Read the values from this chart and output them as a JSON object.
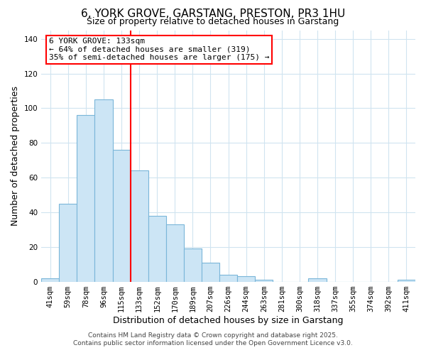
{
  "title": "6, YORK GROVE, GARSTANG, PRESTON, PR3 1HU",
  "subtitle": "Size of property relative to detached houses in Garstang",
  "xlabel": "Distribution of detached houses by size in Garstang",
  "ylabel": "Number of detached properties",
  "bar_color": "#cce5f5",
  "bar_edge_color": "#7ab6d9",
  "categories": [
    "41sqm",
    "59sqm",
    "78sqm",
    "96sqm",
    "115sqm",
    "133sqm",
    "152sqm",
    "170sqm",
    "189sqm",
    "207sqm",
    "226sqm",
    "244sqm",
    "263sqm",
    "281sqm",
    "300sqm",
    "318sqm",
    "337sqm",
    "355sqm",
    "374sqm",
    "392sqm",
    "411sqm"
  ],
  "values": [
    2,
    45,
    96,
    105,
    76,
    64,
    38,
    33,
    19,
    11,
    4,
    3,
    1,
    0,
    0,
    2,
    0,
    0,
    0,
    0,
    1
  ],
  "redline_index": 4.5,
  "ylim": [
    0,
    145
  ],
  "yticks": [
    0,
    20,
    40,
    60,
    80,
    100,
    120,
    140
  ],
  "annotation_title": "6 YORK GROVE: 133sqm",
  "annotation_line1": "← 64% of detached houses are smaller (319)",
  "annotation_line2": "35% of semi-detached houses are larger (175) →",
  "footer_line1": "Contains HM Land Registry data © Crown copyright and database right 2025.",
  "footer_line2": "Contains public sector information licensed under the Open Government Licence v3.0.",
  "background_color": "#ffffff",
  "grid_color": "#d0e4f0",
  "title_fontsize": 11,
  "subtitle_fontsize": 9,
  "axis_label_fontsize": 9,
  "tick_fontsize": 7.5,
  "footer_fontsize": 6.5,
  "annotation_fontsize": 8
}
